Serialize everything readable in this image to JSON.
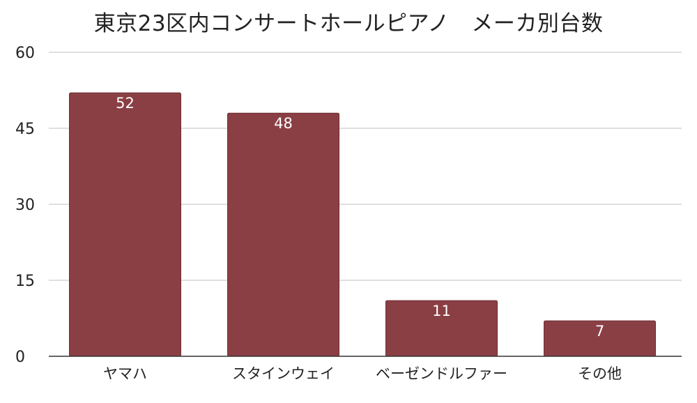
{
  "chart_data": {
    "type": "bar",
    "title": "東京23区内コンサートホールピアノ　メーカ別台数",
    "xlabel": "",
    "ylabel": "",
    "categories": [
      "ヤマハ",
      "スタインウェイ",
      "ベーゼンドルファー",
      "その他"
    ],
    "values": [
      52,
      48,
      11,
      7
    ],
    "data_labels": [
      "52",
      "48",
      "11",
      "7"
    ],
    "ylim": [
      0,
      60
    ],
    "yticks": [
      0,
      15,
      30,
      45,
      60
    ],
    "ytick_labels": [
      "0",
      "15",
      "30",
      "45",
      "60"
    ],
    "grid": true,
    "legend": "none",
    "colors": {
      "bar": "#8a3f44",
      "bar_edge": "#6e2f33",
      "grid": "#cccccc",
      "axis": "#333333"
    }
  }
}
